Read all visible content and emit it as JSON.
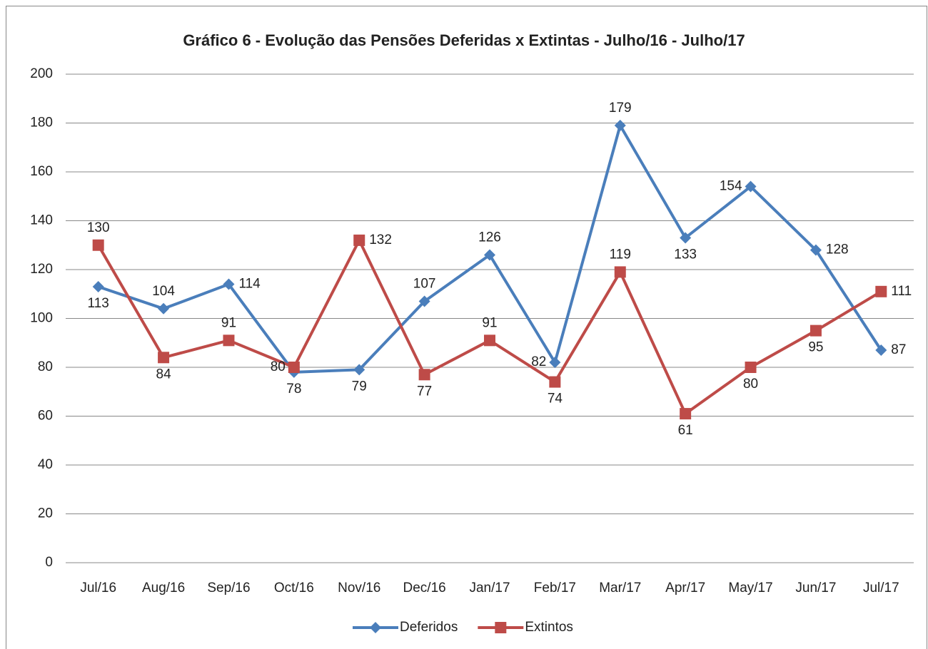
{
  "chart_data": {
    "type": "line",
    "title": "Gráfico 6 - Evolução das Pensões Deferidas x Extintas - Julho/16 - Julho/17",
    "categories": [
      "Jul/16",
      "Aug/16",
      "Sep/16",
      "Oct/16",
      "Nov/16",
      "Dec/16",
      "Jan/17",
      "Feb/17",
      "Mar/17",
      "Apr/17",
      "May/17",
      "Jun/17",
      "Jul/17"
    ],
    "series": [
      {
        "name": "Deferidos",
        "color": "#4a7ebb",
        "label_color": "#1f6fb8",
        "marker": "diamond",
        "values": [
          113,
          104,
          114,
          78,
          79,
          107,
          126,
          82,
          179,
          133,
          154,
          128,
          87
        ]
      },
      {
        "name": "Extintos",
        "color": "#be4b48",
        "label_color": "#b81c1c",
        "marker": "square",
        "values": [
          130,
          84,
          91,
          80,
          132,
          77,
          91,
          74,
          119,
          61,
          80,
          95,
          111
        ]
      }
    ],
    "ylim": [
      0,
      200
    ],
    "yticks": [
      0,
      20,
      40,
      60,
      80,
      100,
      120,
      140,
      160,
      180,
      200
    ],
    "grid": true,
    "legend": "bottom"
  }
}
